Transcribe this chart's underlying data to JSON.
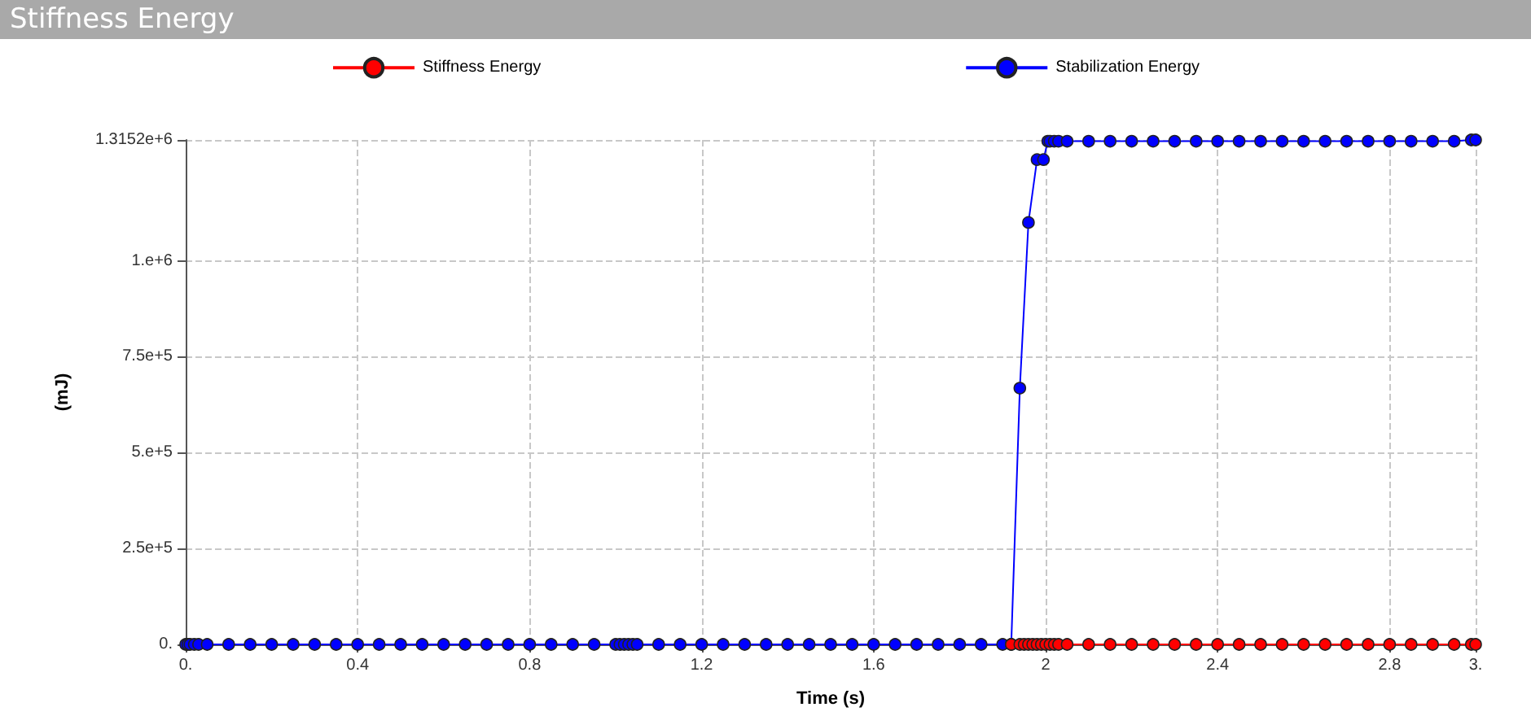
{
  "chart_data": {
    "type": "line",
    "title": "Stiffness Energy",
    "xlabel": "Time (s)",
    "ylabel": "(mJ)",
    "xlim": [
      0,
      3
    ],
    "ylim": [
      0,
      1315200
    ],
    "xticks": [
      {
        "value": 0,
        "label": "0."
      },
      0.4,
      0.8,
      1.2,
      1.6,
      2,
      2.4,
      2.8,
      {
        "value": 3,
        "label": "3."
      }
    ],
    "yticks": [
      {
        "value": 0,
        "label": "0."
      },
      {
        "value": 250000,
        "label": "2.5e+5"
      },
      {
        "value": 500000,
        "label": "5.e+5"
      },
      {
        "value": 750000,
        "label": "7.5e+5"
      },
      {
        "value": 1000000,
        "label": "1.e+6"
      },
      {
        "value": 1315200,
        "label": "1.3152e+6"
      }
    ],
    "grid": true,
    "legend": "top",
    "marker": "circle",
    "line_style": "solid",
    "series": [
      {
        "name": "Stiffness Energy",
        "color": "#ff0000",
        "x": [
          1.92,
          1.94,
          1.95,
          1.96,
          1.97,
          1.98,
          1.99,
          2.0,
          2.01,
          2.02,
          2.03,
          2.05,
          2.1,
          2.15,
          2.2,
          2.25,
          2.3,
          2.35,
          2.4,
          2.45,
          2.5,
          2.55,
          2.6,
          2.65,
          2.7,
          2.75,
          2.8,
          2.85,
          2.9,
          2.95,
          2.99,
          3.0
        ],
        "values": [
          0,
          0,
          0,
          0,
          0,
          0,
          0,
          0,
          0,
          0,
          0,
          0,
          0,
          0,
          0,
          0,
          0,
          0,
          0,
          0,
          0,
          0,
          0,
          0,
          0,
          0,
          0,
          0,
          0,
          0,
          0,
          0
        ]
      },
      {
        "name": "Stabilization Energy",
        "color": "#0000ff",
        "x": [
          0,
          0.005,
          0.01,
          0.02,
          0.03,
          0.05,
          0.1,
          0.15,
          0.2,
          0.25,
          0.3,
          0.35,
          0.4,
          0.45,
          0.5,
          0.55,
          0.6,
          0.65,
          0.7,
          0.75,
          0.8,
          0.85,
          0.9,
          0.95,
          1.0,
          1.01,
          1.02,
          1.03,
          1.04,
          1.05,
          1.1,
          1.15,
          1.2,
          1.25,
          1.3,
          1.35,
          1.4,
          1.45,
          1.5,
          1.55,
          1.6,
          1.65,
          1.7,
          1.75,
          1.8,
          1.85,
          1.9,
          1.92,
          1.94,
          1.96,
          1.98,
          1.995,
          2.005,
          2.01,
          2.02,
          2.03,
          2.05,
          2.1,
          2.15,
          2.2,
          2.25,
          2.3,
          2.35,
          2.4,
          2.45,
          2.5,
          2.55,
          2.6,
          2.65,
          2.7,
          2.75,
          2.8,
          2.85,
          2.9,
          2.95,
          2.99,
          3.0
        ],
        "values": [
          0,
          0,
          0,
          0,
          0,
          0,
          0,
          0,
          0,
          0,
          0,
          0,
          0,
          0,
          0,
          0,
          0,
          0,
          0,
          0,
          0,
          0,
          0,
          0,
          0,
          0,
          0,
          0,
          0,
          0,
          0,
          0,
          0,
          0,
          0,
          0,
          0,
          0,
          0,
          0,
          0,
          0,
          0,
          0,
          0,
          0,
          0,
          0,
          668000,
          1100000,
          1264000,
          1264000,
          1312000,
          1312000,
          1312000,
          1312000,
          1312000,
          1312000,
          1312000,
          1312000,
          1312000,
          1312000,
          1312000,
          1312000,
          1312000,
          1312000,
          1312000,
          1312000,
          1312000,
          1312000,
          1312000,
          1312000,
          1312000,
          1312000,
          1312000,
          1315200,
          1315200
        ]
      }
    ]
  }
}
